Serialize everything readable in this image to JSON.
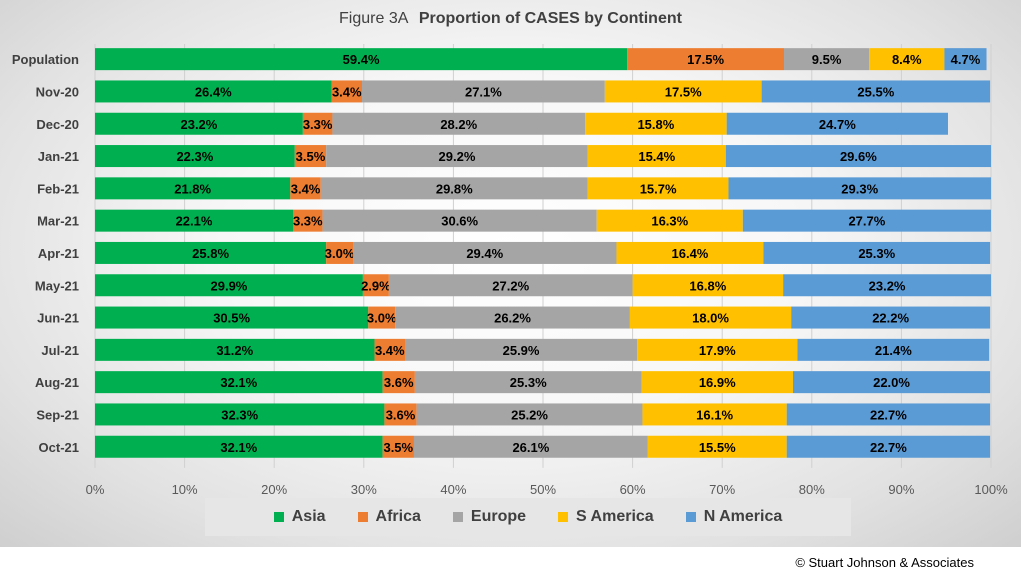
{
  "title": {
    "figure": "Figure  3A",
    "main": "Proportion of CASES by Continent"
  },
  "copyright": "© Stuart Johnson & Associates",
  "colors": {
    "Asia": "#00b050",
    "Africa": "#ed7d31",
    "Europe": "#a5a5a5",
    "S America": "#ffc000",
    "N America": "#5b9bd5"
  },
  "chart_data": {
    "type": "bar",
    "orientation": "horizontal",
    "stacked": "percent",
    "title": "Figure  3A  Proportion of CASES by Continent",
    "categories": [
      "Population",
      "Nov-20",
      "Dec-20",
      "Jan-21",
      "Feb-21",
      "Mar-21",
      "Apr-21",
      "May-21",
      "Jun-21",
      "Jul-21",
      "Aug-21",
      "Sep-21",
      "Oct-21"
    ],
    "series": [
      {
        "name": "Asia",
        "values": [
          59.4,
          26.4,
          23.2,
          22.3,
          21.8,
          22.1,
          25.8,
          29.9,
          30.5,
          31.2,
          32.1,
          32.3,
          32.1
        ]
      },
      {
        "name": "Africa",
        "values": [
          17.5,
          3.4,
          3.3,
          3.5,
          3.4,
          3.3,
          3.0,
          2.9,
          3.0,
          3.4,
          3.6,
          3.6,
          3.5
        ]
      },
      {
        "name": "Europe",
        "values": [
          9.5,
          27.1,
          28.2,
          29.2,
          29.8,
          30.6,
          29.4,
          27.2,
          26.2,
          25.9,
          25.3,
          25.2,
          26.1
        ]
      },
      {
        "name": "S America",
        "values": [
          8.4,
          17.5,
          15.8,
          15.4,
          15.7,
          16.3,
          16.4,
          16.8,
          18.0,
          17.9,
          16.9,
          16.1,
          15.5
        ]
      },
      {
        "name": "N America",
        "values": [
          4.7,
          25.5,
          24.7,
          29.6,
          29.3,
          27.7,
          25.3,
          23.2,
          22.2,
          21.4,
          22.0,
          22.7,
          22.7
        ]
      }
    ],
    "xlim": [
      0,
      100
    ],
    "xticks": [
      "0%",
      "10%",
      "20%",
      "30%",
      "40%",
      "50%",
      "60%",
      "70%",
      "80%",
      "90%",
      "100%"
    ],
    "value_suffix": "%",
    "grid": true,
    "legend": "bottom"
  }
}
